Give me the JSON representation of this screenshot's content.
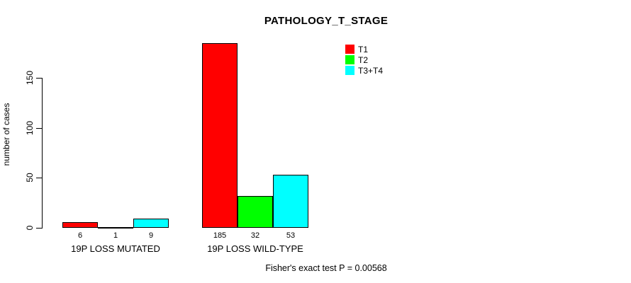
{
  "chart_data": {
    "type": "bar",
    "title": "PATHOLOGY_T_STAGE",
    "xlabel": "",
    "ylabel": "number of cases",
    "ylim": [
      0,
      150
    ],
    "yticks": [
      0,
      50,
      100,
      150
    ],
    "grid": false,
    "legend_position": "top-right",
    "categories": [
      "19P LOSS MUTATED",
      "19P LOSS WILD-TYPE"
    ],
    "series": [
      {
        "name": "T1",
        "color": "#FF0000",
        "values": [
          6,
          185
        ]
      },
      {
        "name": "T2",
        "color": "#00FF00",
        "values": [
          1,
          32
        ]
      },
      {
        "name": "T3+T4",
        "color": "#00FFFF",
        "values": [
          9,
          53
        ]
      }
    ],
    "bar_value_labels": [
      [
        "6",
        "1",
        "9"
      ],
      [
        "185",
        "32",
        "53"
      ]
    ],
    "annotation": "Fisher's exact test P = 0.00568"
  },
  "colors": {
    "background": "#FFFFFF",
    "axis": "#000000",
    "bar_border": "#000000",
    "text": "#000000"
  }
}
